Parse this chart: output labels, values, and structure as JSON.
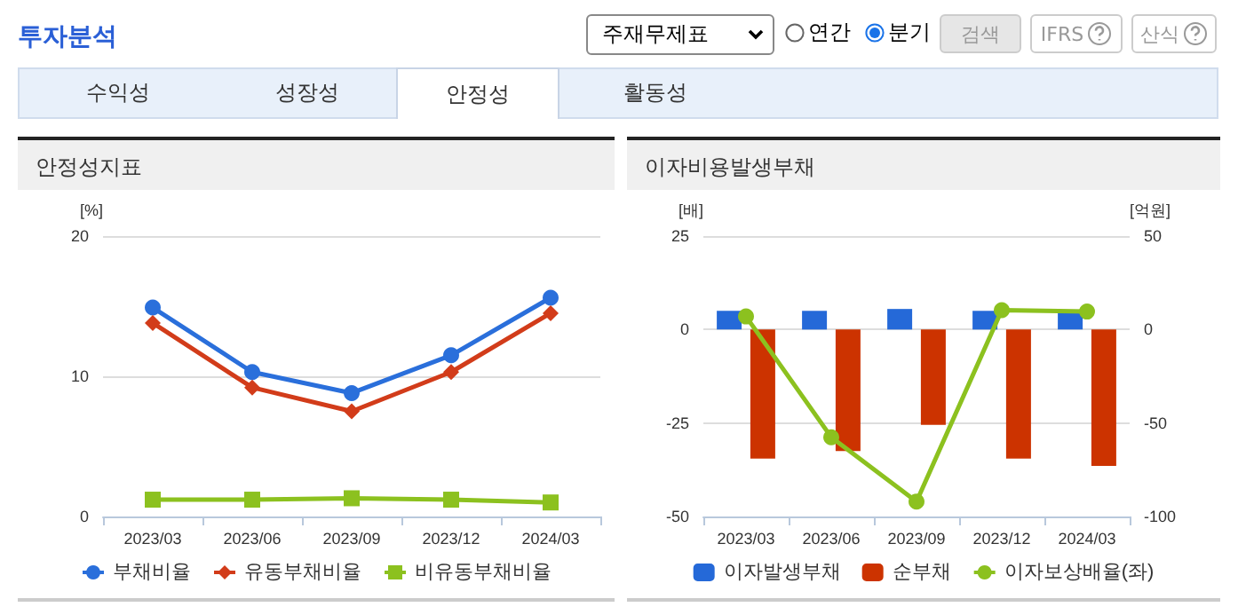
{
  "chart_data": [
    {
      "type": "other",
      "title": "투자분석",
      "annotations": [
        "주재무제표",
        "연간",
        "분기",
        "검색",
        "IFRS",
        "산식",
        "수익성",
        "성장성",
        "안정성",
        "활동성"
      ]
    },
    {
      "type": "line",
      "title": "안정성지표",
      "ylabel": "[%]",
      "categories": [
        "2023/03",
        "2023/06",
        "2023/09",
        "2023/12",
        "2024/03"
      ],
      "series": [
        {
          "name": "부채비율",
          "color": "#2a6fdb",
          "marker": "circle",
          "values": [
            14.9,
            10.3,
            8.8,
            11.5,
            15.6
          ]
        },
        {
          "name": "유동부채비율",
          "color": "#d23c1a",
          "marker": "diamond",
          "values": [
            13.8,
            9.2,
            7.5,
            10.3,
            14.5
          ]
        },
        {
          "name": "비유동부채비율",
          "color": "#8cc11f",
          "marker": "square",
          "values": [
            1.2,
            1.2,
            1.3,
            1.2,
            1.0
          ]
        }
      ],
      "ylim": [
        0,
        20
      ],
      "yticks": [
        0,
        10,
        20
      ],
      "grid": "y",
      "legend": "bottom"
    },
    {
      "type": "bar",
      "title": "이자비용발생부채",
      "ylabel": "[배]",
      "y2label": "[억원]",
      "categories": [
        "2023/03",
        "2023/06",
        "2023/09",
        "2023/12",
        "2024/03"
      ],
      "series": [
        {
          "name": "이자발생부채",
          "color": "#2569d8",
          "axis": "y2",
          "values": [
            10,
            10,
            11,
            10,
            10
          ]
        },
        {
          "name": "순부채",
          "color": "#cc3300",
          "axis": "y2",
          "values": [
            -69,
            -65,
            -51,
            -69,
            -73
          ]
        },
        {
          "name": "이자보상배율(좌)",
          "type": "line",
          "color": "#8cc11f",
          "marker": "circle",
          "values": [
            3.5,
            -28.8,
            -46,
            5.2,
            4.8
          ]
        }
      ],
      "ylim": [
        -50,
        25
      ],
      "yticks": [
        -50,
        -25,
        0,
        25
      ],
      "y2lim": [
        -100,
        50
      ],
      "y2ticks": [
        -100,
        -50,
        0,
        50
      ],
      "grid": "y",
      "legend": "bottom"
    }
  ]
}
